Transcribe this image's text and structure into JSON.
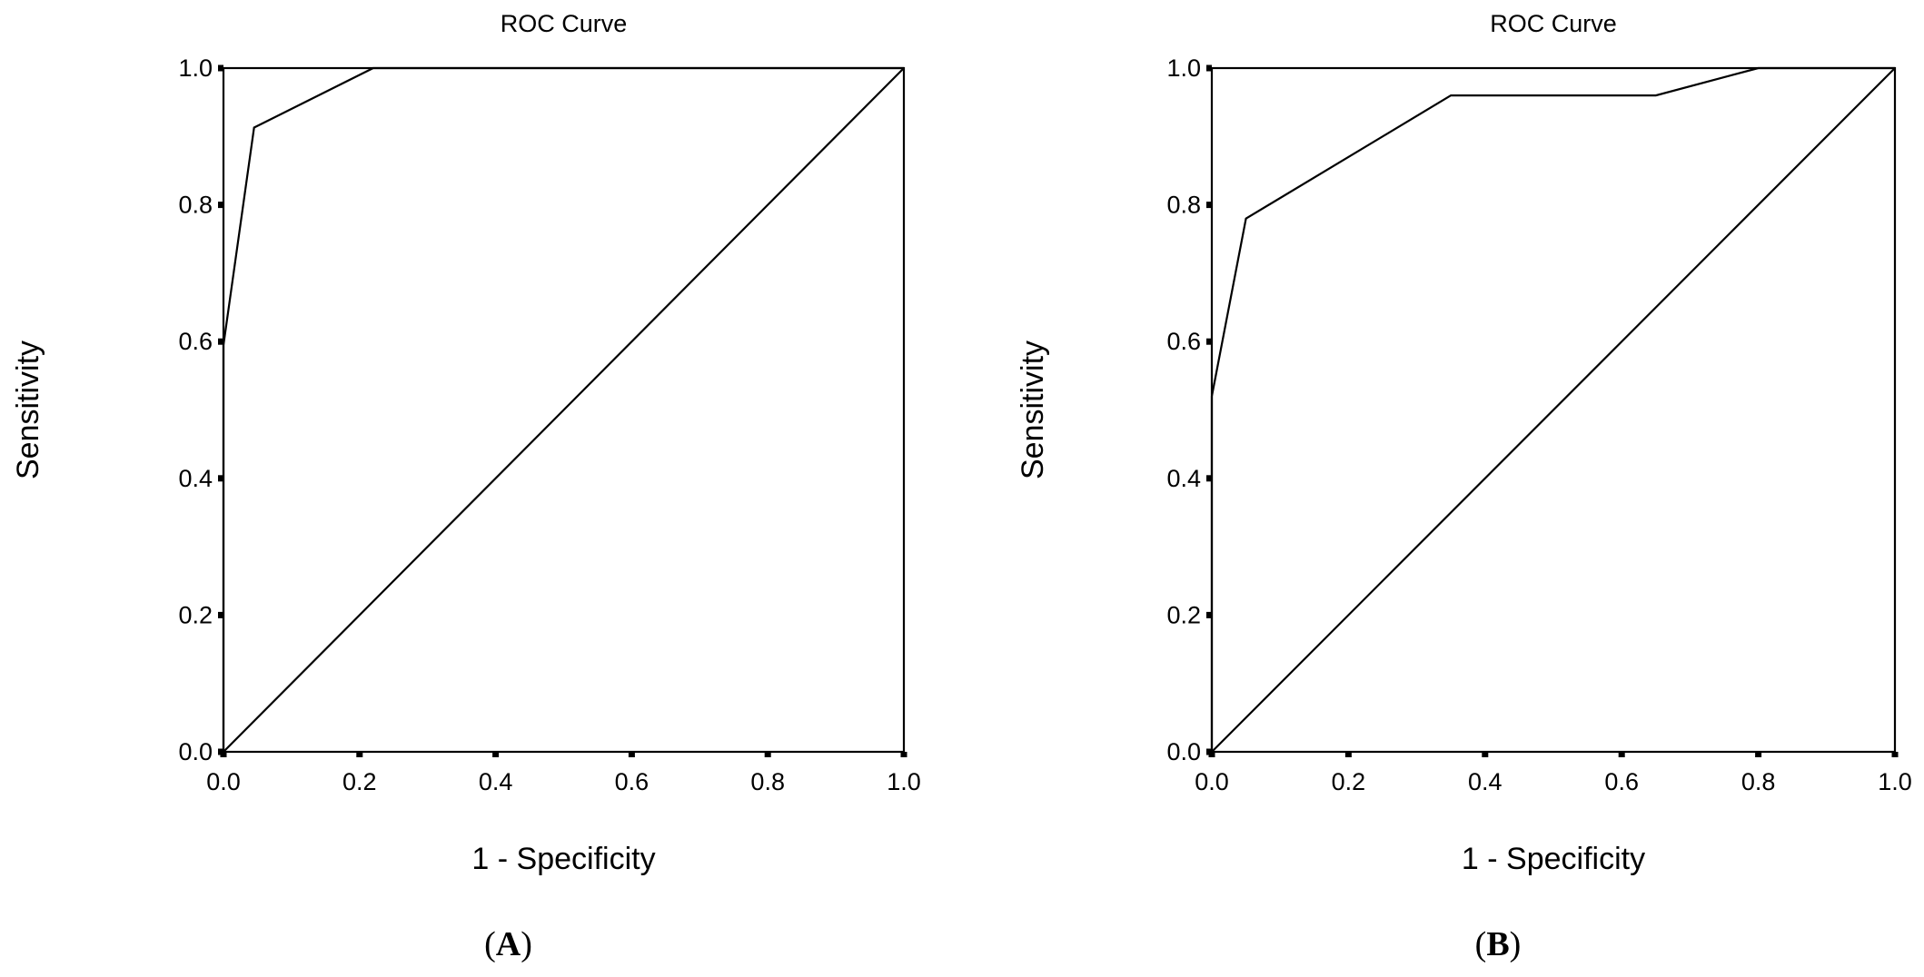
{
  "chart_data": [
    {
      "type": "line",
      "title": "ROC Curve",
      "xlabel": "1 - Specificity",
      "ylabel": "Sensitivity",
      "panel_label": "A",
      "xlim": [
        0,
        1
      ],
      "ylim": [
        0,
        1
      ],
      "x_ticks": [
        "0.0",
        "0.2",
        "0.4",
        "0.6",
        "0.8",
        "1.0"
      ],
      "y_ticks": [
        "0.0",
        "0.2",
        "0.4",
        "0.6",
        "0.8",
        "1.0"
      ],
      "grid": false,
      "series": [
        {
          "x": [
            0.0,
            0.0,
            0.045,
            0.22,
            1.0
          ],
          "y": [
            0.0,
            0.595,
            0.913,
            1.0,
            1.0
          ]
        },
        {
          "x": [
            0.0,
            1.0
          ],
          "y": [
            0.0,
            1.0
          ]
        }
      ]
    },
    {
      "type": "line",
      "title": "ROC Curve",
      "xlabel": "1 - Specificity",
      "ylabel": "Sensitivity",
      "panel_label": "B",
      "xlim": [
        0,
        1
      ],
      "ylim": [
        0,
        1
      ],
      "x_ticks": [
        "0.0",
        "0.2",
        "0.4",
        "0.6",
        "0.8",
        "1.0"
      ],
      "y_ticks": [
        "0.0",
        "0.2",
        "0.4",
        "0.6",
        "0.8",
        "1.0"
      ],
      "grid": false,
      "series": [
        {
          "x": [
            0.0,
            0.0,
            0.05,
            0.35,
            0.65,
            0.8,
            1.0
          ],
          "y": [
            0.0,
            0.52,
            0.78,
            0.96,
            0.96,
            1.0,
            1.0
          ]
        },
        {
          "x": [
            0.0,
            1.0
          ],
          "y": [
            0.0,
            1.0
          ]
        }
      ]
    }
  ]
}
